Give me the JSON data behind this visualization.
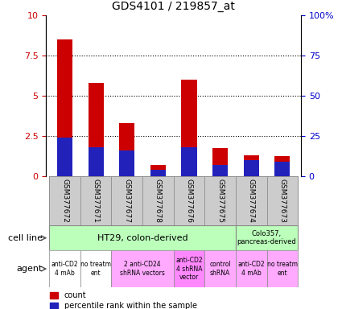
{
  "title": "GDS4101 / 219857_at",
  "samples": [
    "GSM377672",
    "GSM377671",
    "GSM377677",
    "GSM377678",
    "GSM377676",
    "GSM377675",
    "GSM377674",
    "GSM377673"
  ],
  "count_values": [
    8.5,
    5.8,
    3.3,
    0.7,
    6.0,
    1.75,
    1.3,
    1.25
  ],
  "percentile_values": [
    2.4,
    1.8,
    1.6,
    0.4,
    1.8,
    0.7,
    1.0,
    0.9
  ],
  "ylim_left": [
    0,
    10
  ],
  "ylim_right": [
    0,
    100
  ],
  "yticks_left": [
    0,
    2.5,
    5,
    7.5,
    10
  ],
  "yticks_right": [
    0,
    25,
    50,
    75,
    100
  ],
  "ytick_labels_right": [
    "0",
    "25",
    "50",
    "75",
    "100%"
  ],
  "count_color": "#cc0000",
  "percentile_color": "#2222bb",
  "cell_line_ht29_color": "#bbffbb",
  "cell_line_colo_color": "#bbffbb",
  "sample_box_color": "#cccccc",
  "background_color": "#ffffff",
  "tick_label_color_left": "#cc0000",
  "tick_label_color_right": "#0000cc",
  "agent_blocks": [
    {
      "start": 0,
      "end": 1,
      "color": "#ffffff",
      "text": "anti-CD2\n4 mAb"
    },
    {
      "start": 1,
      "end": 2,
      "color": "#ffffff",
      "text": "no treatm\nent"
    },
    {
      "start": 2,
      "end": 4,
      "color": "#ffaaff",
      "text": "2 anti-CD24\nshRNA vectors"
    },
    {
      "start": 4,
      "end": 5,
      "color": "#ff88ff",
      "text": "anti-CD2\n4 shRNA\nvector"
    },
    {
      "start": 5,
      "end": 6,
      "color": "#ffaaff",
      "text": "control\nshRNA"
    },
    {
      "start": 6,
      "end": 7,
      "color": "#ffaaff",
      "text": "anti-CD2\n4 mAb"
    },
    {
      "start": 7,
      "end": 8,
      "color": "#ffaaff",
      "text": "no treatm\nent"
    }
  ]
}
